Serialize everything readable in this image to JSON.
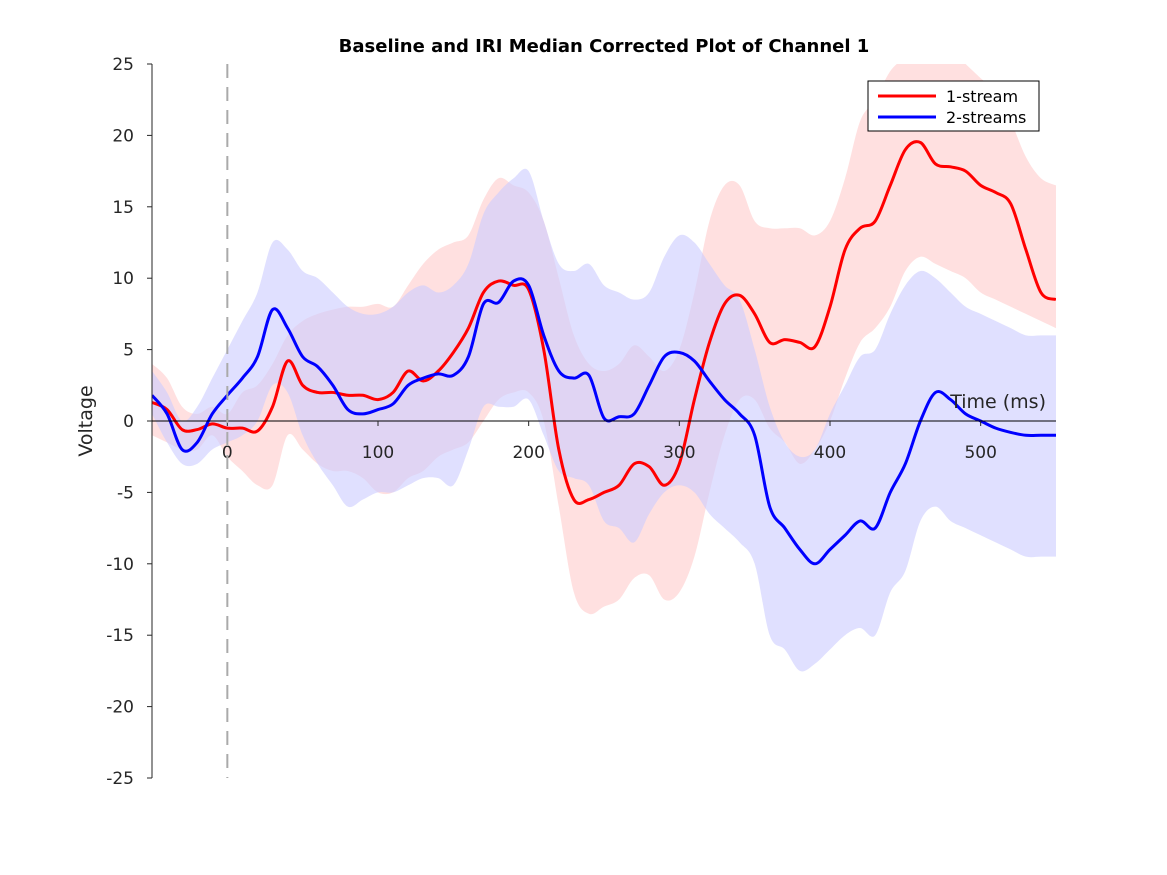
{
  "chart_data": {
    "type": "line",
    "title": "Baseline and IRI Median Corrected Plot of Channel 1",
    "xlabel": "Time (ms)",
    "ylabel": "Voltage",
    "xlim": [
      -50,
      550
    ],
    "ylim": [
      -25,
      25
    ],
    "xticks": [
      0,
      100,
      200,
      300,
      400,
      500
    ],
    "yticks": [
      -25,
      -20,
      -15,
      -10,
      -5,
      0,
      5,
      10,
      15,
      20,
      25
    ],
    "stimulus_marker_x": 0,
    "legend_position": "top-right",
    "series": [
      {
        "name": "1-stream",
        "color": "#ff0000",
        "band_color": "#ffcccc",
        "x": [
          -50,
          -40,
          -30,
          -20,
          -10,
          0,
          10,
          20,
          30,
          40,
          50,
          60,
          70,
          80,
          90,
          100,
          110,
          120,
          130,
          140,
          150,
          160,
          170,
          180,
          190,
          200,
          210,
          220,
          230,
          240,
          250,
          260,
          270,
          280,
          290,
          300,
          310,
          320,
          330,
          340,
          350,
          360,
          370,
          380,
          390,
          400,
          410,
          420,
          430,
          440,
          450,
          460,
          470,
          480,
          490,
          500,
          510,
          520,
          530,
          540,
          550
        ],
        "y": [
          1.3,
          0.8,
          -0.6,
          -0.6,
          -0.2,
          -0.5,
          -0.5,
          -0.7,
          1.0,
          4.2,
          2.5,
          2.0,
          2.0,
          1.8,
          1.8,
          1.5,
          2.0,
          3.5,
          2.8,
          3.5,
          4.8,
          6.5,
          9.0,
          9.8,
          9.5,
          9.2,
          5.0,
          -2.0,
          -5.5,
          -5.5,
          -5.0,
          -4.5,
          -3.0,
          -3.2,
          -4.5,
          -3.0,
          1.5,
          5.5,
          8.2,
          8.8,
          7.5,
          5.5,
          5.7,
          5.5,
          5.2,
          8.0,
          12.0,
          13.5,
          14.0,
          16.5,
          19.0,
          19.5,
          18.0,
          17.8,
          17.5,
          16.5,
          16.0,
          15.2,
          12.0,
          9.0,
          8.5
        ],
        "upper": [
          4.0,
          3.0,
          1.0,
          0.5,
          1.0,
          0.5,
          2.0,
          2.5,
          4.0,
          6.0,
          7.0,
          7.5,
          7.8,
          8.0,
          8.0,
          8.2,
          8.0,
          9.5,
          11.0,
          12.0,
          12.5,
          13.0,
          15.5,
          17.0,
          16.5,
          16.0,
          14.0,
          10.0,
          6.0,
          4.0,
          3.5,
          4.0,
          5.3,
          4.5,
          3.5,
          5.0,
          9.0,
          14.0,
          16.5,
          16.5,
          14.0,
          13.5,
          13.5,
          13.5,
          13.0,
          14.0,
          17.0,
          21.0,
          22.5,
          24.5,
          25.5,
          26.5,
          26.5,
          26.0,
          25.0,
          24.0,
          23.0,
          21.0,
          18.5,
          17.0,
          16.5
        ],
        "lower": [
          -1.0,
          -1.5,
          -2.0,
          -2.0,
          -1.0,
          -2.5,
          -3.5,
          -4.5,
          -4.5,
          -1.0,
          -2.0,
          -3.0,
          -3.5,
          -3.5,
          -4.0,
          -5.0,
          -5.0,
          -4.0,
          -3.5,
          -2.5,
          -2.0,
          -1.5,
          0.0,
          1.5,
          2.0,
          2.0,
          0.0,
          -6.0,
          -12.0,
          -13.5,
          -13.0,
          -12.5,
          -11.0,
          -10.8,
          -12.5,
          -12.0,
          -9.5,
          -5.0,
          -1.0,
          1.5,
          1.5,
          -0.5,
          -1.5,
          -3.0,
          -2.0,
          0.0,
          3.0,
          5.5,
          6.5,
          8.0,
          10.5,
          11.5,
          11.0,
          10.5,
          10.0,
          9.0,
          8.5,
          8.0,
          7.5,
          7.0,
          6.5
        ]
      },
      {
        "name": "2-streams",
        "color": "#0000ff",
        "band_color": "#ccccff",
        "x": [
          -50,
          -40,
          -30,
          -20,
          -10,
          0,
          10,
          20,
          30,
          40,
          50,
          60,
          70,
          80,
          90,
          100,
          110,
          120,
          130,
          140,
          150,
          160,
          170,
          180,
          190,
          200,
          210,
          220,
          230,
          240,
          250,
          260,
          270,
          280,
          290,
          300,
          310,
          320,
          330,
          340,
          350,
          360,
          370,
          380,
          390,
          400,
          410,
          420,
          430,
          440,
          450,
          460,
          470,
          480,
          490,
          500,
          510,
          520,
          530,
          540,
          550
        ],
        "y": [
          1.8,
          0.5,
          -2.0,
          -1.5,
          0.5,
          1.8,
          3.0,
          4.5,
          7.8,
          6.5,
          4.5,
          3.8,
          2.5,
          0.8,
          0.5,
          0.8,
          1.2,
          2.5,
          3.0,
          3.3,
          3.2,
          4.5,
          8.2,
          8.3,
          9.8,
          9.5,
          6.0,
          3.5,
          3.0,
          3.2,
          0.2,
          0.3,
          0.5,
          2.5,
          4.5,
          4.8,
          4.2,
          2.8,
          1.5,
          0.5,
          -1.0,
          -6.0,
          -7.5,
          -9.0,
          -10.0,
          -9.0,
          -8.0,
          -7.0,
          -7.5,
          -5.0,
          -3.0,
          0.0,
          2.0,
          1.5,
          0.5,
          0.0,
          -0.5,
          -0.8,
          -1.0,
          -1.0,
          -1.0
        ],
        "upper": [
          3.5,
          2.0,
          0.0,
          1.0,
          3.0,
          5.0,
          7.0,
          9.0,
          12.5,
          12.0,
          10.5,
          10.0,
          9.0,
          8.0,
          7.5,
          7.5,
          8.0,
          9.0,
          9.5,
          9.0,
          9.5,
          11.0,
          14.5,
          16.0,
          17.0,
          17.5,
          14.0,
          11.0,
          10.5,
          11.0,
          9.5,
          9.0,
          8.5,
          9.0,
          11.5,
          13.0,
          12.5,
          11.0,
          9.5,
          8.5,
          5.0,
          1.0,
          -1.5,
          -2.5,
          -2.0,
          0.5,
          2.5,
          4.5,
          5.0,
          7.5,
          9.5,
          10.5,
          10.0,
          9.0,
          8.0,
          7.5,
          7.0,
          6.5,
          6.0,
          6.0,
          6.0
        ],
        "lower": [
          0.5,
          -1.5,
          -3.0,
          -3.0,
          -2.0,
          -1.5,
          -1.0,
          0.0,
          2.5,
          2.0,
          -1.0,
          -3.0,
          -4.5,
          -6.0,
          -5.5,
          -5.0,
          -5.0,
          -4.5,
          -4.0,
          -4.0,
          -4.5,
          -2.0,
          1.0,
          1.0,
          1.0,
          1.5,
          -1.0,
          -3.5,
          -4.0,
          -4.5,
          -7.0,
          -7.5,
          -8.5,
          -6.5,
          -5.0,
          -4.5,
          -5.0,
          -6.5,
          -7.5,
          -8.5,
          -10.0,
          -15.0,
          -16.0,
          -17.5,
          -17.0,
          -16.0,
          -15.0,
          -14.5,
          -15.0,
          -12.0,
          -10.5,
          -7.0,
          -6.0,
          -7.0,
          -7.5,
          -8.0,
          -8.5,
          -9.0,
          -9.5,
          -9.5,
          -9.5
        ]
      }
    ]
  }
}
